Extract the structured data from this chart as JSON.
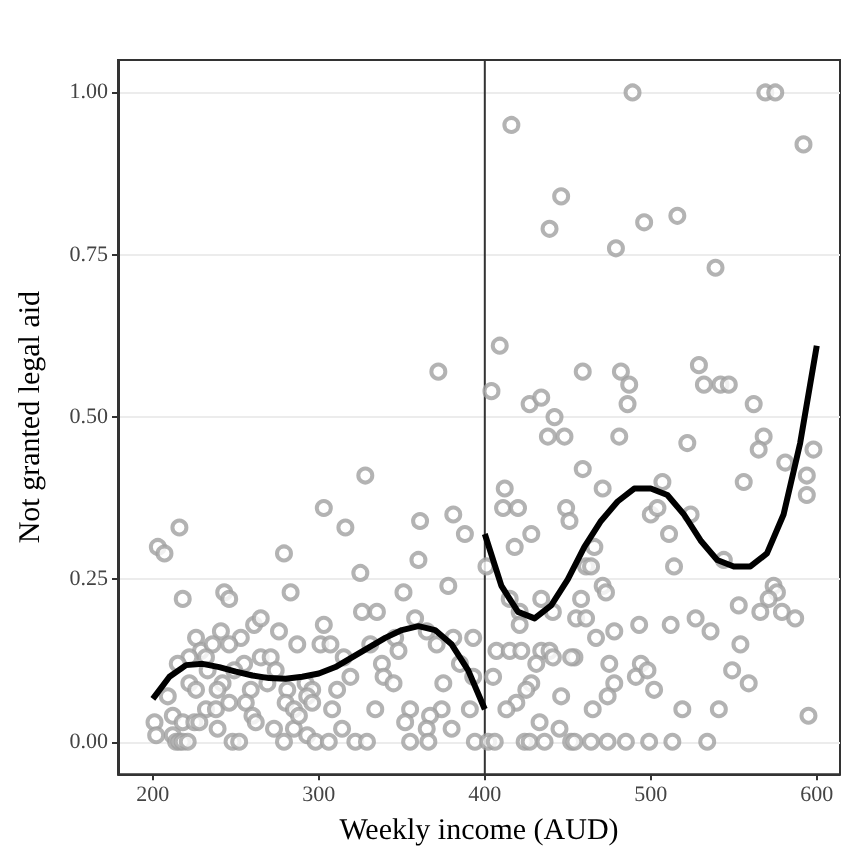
{
  "chart_data": {
    "type": "scatter",
    "xlabel": "Weekly income (AUD)",
    "ylabel": "Not granted legal aid",
    "xlim": [
      179,
      614
    ],
    "ylim": [
      -0.05,
      1.05
    ],
    "xticks": [
      200,
      300,
      400,
      500,
      600
    ],
    "yticks": [
      {
        "value": 0,
        "label": "0.00"
      },
      {
        "value": 0.25,
        "label": "0.25"
      },
      {
        "value": 0.5,
        "label": "0.50"
      },
      {
        "value": 0.75,
        "label": "0.75"
      },
      {
        "value": 1,
        "label": "1.00"
      }
    ],
    "grid": "y",
    "marker": "circle",
    "ref_lines": [
      {
        "axis": "x",
        "value": 400,
        "label": null,
        "color": "#333333"
      }
    ],
    "series": [
      {
        "color": "#a0a0a0",
        "x": [
          489,
          569,
          575,
          416,
          592,
          446,
          439,
          496,
          516,
          479,
          539,
          409,
          404,
          427,
          434,
          442,
          459,
          482,
          487,
          486,
          529,
          532,
          542,
          547,
          562,
          372,
          203,
          207,
          216,
          218,
          328,
          303,
          316,
          279,
          283,
          243,
          246,
          325,
          351,
          361,
          360,
          381,
          378,
          388,
          261,
          265,
          241,
          226,
          229,
          236,
          253,
          246,
          276,
          303,
          326,
          335,
          358,
          365,
          381,
          393,
          287,
          301,
          307,
          331,
          346,
          371,
          222,
          215,
          232,
          255,
          265,
          271,
          315,
          338,
          348,
          385,
          233,
          249,
          274,
          319,
          339,
          345,
          375,
          393,
          222,
          209,
          226,
          242,
          239,
          259,
          269,
          281,
          292,
          296,
          293,
          311,
          232,
          238,
          246,
          256,
          280,
          285,
          296,
          308,
          334,
          355,
          374,
          391,
          201,
          212,
          218,
          225,
          228,
          260,
          262,
          285,
          288,
          314,
          352,
          367,
          365,
          202,
          212,
          239,
          273,
          293,
          380,
          214,
          216,
          218,
          221,
          248,
          252,
          279,
          298,
          306,
          322,
          329,
          355,
          366,
          394,
          438,
          448,
          481,
          522,
          568,
          565,
          581,
          598,
          459,
          471,
          507,
          412,
          411,
          420,
          449,
          451,
          500,
          504,
          524,
          594,
          556,
          594,
          428,
          418,
          466,
          461,
          464,
          511,
          514,
          544,
          471,
          473,
          401,
          415,
          434,
          421,
          441,
          458,
          455,
          461,
          421,
          553,
          574,
          576,
          571,
          566,
          579,
          587,
          493,
          512,
          527,
          536,
          478,
          467,
          554,
          407,
          415,
          422,
          434,
          439,
          441,
          454,
          452,
          431,
          475,
          494,
          405,
          428,
          491,
          498,
          549,
          559,
          478,
          425,
          419,
          413,
          446,
          474,
          502,
          465,
          519,
          541,
          595,
          433,
          445,
          402,
          406,
          424,
          427,
          436,
          452,
          454,
          464,
          474,
          485,
          499,
          513,
          534
        ],
        "values": [
          1.0,
          1.0,
          1.0,
          0.95,
          0.92,
          0.84,
          0.79,
          0.8,
          0.81,
          0.76,
          0.73,
          0.61,
          0.54,
          0.52,
          0.53,
          0.5,
          0.57,
          0.57,
          0.55,
          0.52,
          0.58,
          0.55,
          0.55,
          0.55,
          0.52,
          0.57,
          0.3,
          0.29,
          0.33,
          0.22,
          0.41,
          0.36,
          0.33,
          0.29,
          0.23,
          0.23,
          0.22,
          0.26,
          0.23,
          0.34,
          0.28,
          0.35,
          0.24,
          0.32,
          0.18,
          0.19,
          0.17,
          0.16,
          0.14,
          0.15,
          0.16,
          0.15,
          0.17,
          0.18,
          0.2,
          0.2,
          0.19,
          0.17,
          0.16,
          0.16,
          0.15,
          0.15,
          0.15,
          0.15,
          0.16,
          0.15,
          0.13,
          0.12,
          0.13,
          0.12,
          0.13,
          0.13,
          0.13,
          0.12,
          0.14,
          0.12,
          0.11,
          0.11,
          0.11,
          0.1,
          0.1,
          0.09,
          0.09,
          0.1,
          0.09,
          0.07,
          0.08,
          0.09,
          0.08,
          0.08,
          0.09,
          0.08,
          0.09,
          0.08,
          0.07,
          0.08,
          0.05,
          0.05,
          0.06,
          0.06,
          0.06,
          0.05,
          0.06,
          0.05,
          0.05,
          0.05,
          0.05,
          0.05,
          0.03,
          0.04,
          0.03,
          0.03,
          0.03,
          0.04,
          0.03,
          0.02,
          0.04,
          0.02,
          0.03,
          0.04,
          0.02,
          0.01,
          0.01,
          0.02,
          0.02,
          0.01,
          0.02,
          0,
          0,
          0,
          0,
          0,
          0,
          0,
          0,
          0,
          0,
          0,
          0,
          0,
          0,
          0.47,
          0.47,
          0.47,
          0.46,
          0.47,
          0.45,
          0.43,
          0.45,
          0.42,
          0.39,
          0.4,
          0.39,
          0.36,
          0.36,
          0.36,
          0.34,
          0.35,
          0.36,
          0.35,
          0.41,
          0.4,
          0.38,
          0.32,
          0.3,
          0.3,
          0.27,
          0.27,
          0.32,
          0.27,
          0.28,
          0.24,
          0.23,
          0.27,
          0.22,
          0.22,
          0.2,
          0.2,
          0.22,
          0.19,
          0.19,
          0.18,
          0.21,
          0.24,
          0.23,
          0.22,
          0.2,
          0.2,
          0.19,
          0.18,
          0.18,
          0.19,
          0.17,
          0.17,
          0.16,
          0.15,
          0.14,
          0.14,
          0.14,
          0.14,
          0.14,
          0.13,
          0.13,
          0.13,
          0.12,
          0.12,
          0.12,
          0.1,
          0.09,
          0.1,
          0.11,
          0.11,
          0.09,
          0.09,
          0.08,
          0.06,
          0.05,
          0.07,
          0.07,
          0.08,
          0.05,
          0.05,
          0.05,
          0.04,
          0.03,
          0.02,
          0,
          0,
          0,
          0,
          0,
          0,
          0,
          0,
          0,
          0,
          0,
          0,
          0
        ]
      },
      {
        "type": "line",
        "color": "#000000",
        "marker": "none",
        "x": [
          200,
          210,
          220,
          230,
          240,
          250,
          260,
          270,
          280,
          290,
          300,
          310,
          320,
          330,
          340,
          350,
          360,
          370,
          380,
          390,
          400
        ],
        "values": [
          0.066,
          0.1,
          0.118,
          0.12,
          0.115,
          0.108,
          0.102,
          0.098,
          0.097,
          0.1,
          0.105,
          0.115,
          0.13,
          0.145,
          0.16,
          0.172,
          0.178,
          0.172,
          0.15,
          0.11,
          0.05
        ]
      },
      {
        "type": "line",
        "color": "#000000",
        "marker": "none",
        "x": [
          400,
          410,
          420,
          430,
          440,
          450,
          460,
          470,
          480,
          490,
          500,
          510,
          520,
          530,
          540,
          550,
          560,
          570,
          580,
          590,
          600
        ],
        "values": [
          0.32,
          0.24,
          0.2,
          0.19,
          0.21,
          0.25,
          0.3,
          0.34,
          0.37,
          0.39,
          0.39,
          0.38,
          0.35,
          0.31,
          0.28,
          0.27,
          0.27,
          0.29,
          0.35,
          0.46,
          0.61
        ]
      }
    ]
  }
}
